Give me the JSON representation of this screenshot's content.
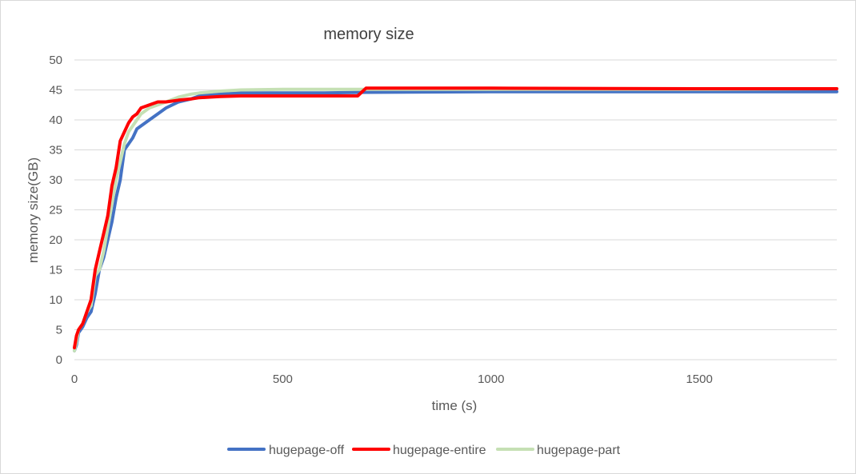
{
  "chart_data": {
    "type": "line",
    "title": "memory size",
    "xlabel": "time (s)",
    "ylabel": "memory size(GB)",
    "xlim": [
      0,
      1830
    ],
    "ylim": [
      0,
      50
    ],
    "xticks": [
      "0",
      "500",
      "1000",
      "1500"
    ],
    "xtick_values": [
      0,
      500,
      1000,
      1500
    ],
    "yticks": [
      "0",
      "5",
      "10",
      "15",
      "20",
      "25",
      "30",
      "35",
      "40",
      "45",
      "50"
    ],
    "ytick_values": [
      0,
      5,
      10,
      15,
      20,
      25,
      30,
      35,
      40,
      45,
      50
    ],
    "grid": "horizontal",
    "legend": "bottom",
    "series": [
      {
        "name": "hugepage-off",
        "color": "#4472c4",
        "x": [
          0,
          5,
          10,
          15,
          20,
          30,
          40,
          50,
          60,
          70,
          80,
          90,
          100,
          110,
          120,
          130,
          140,
          150,
          160,
          180,
          200,
          220,
          250,
          280,
          300,
          350,
          400,
          500,
          600,
          700,
          1000,
          1500,
          1830
        ],
        "y": [
          1.5,
          2.5,
          4.5,
          5,
          5.5,
          7,
          8,
          11,
          15,
          17,
          20,
          23,
          27,
          30,
          35,
          36,
          37,
          38.5,
          39,
          40,
          41,
          42,
          43,
          43.5,
          44,
          44.3,
          44.5,
          44.5,
          44.5,
          44.6,
          44.7,
          44.7,
          44.7
        ]
      },
      {
        "name": "hugepage-entire",
        "color": "#ff0000",
        "x": [
          0,
          5,
          10,
          15,
          20,
          30,
          40,
          50,
          60,
          70,
          80,
          90,
          100,
          110,
          120,
          130,
          140,
          150,
          160,
          180,
          200,
          220,
          250,
          280,
          300,
          350,
          400,
          500,
          600,
          680,
          700,
          1000,
          1500,
          1830
        ],
        "y": [
          2,
          4,
          5,
          5.5,
          6,
          8,
          10,
          15,
          18,
          21,
          24,
          29,
          32,
          36.5,
          38,
          39.5,
          40.5,
          41,
          42,
          42.5,
          43,
          43,
          43.3,
          43.5,
          43.7,
          43.9,
          44,
          44,
          44,
          44,
          45.3,
          45.3,
          45.2,
          45.2
        ]
      },
      {
        "name": "hugepage-part",
        "color": "#c5e0b4",
        "x": [
          0,
          5,
          10,
          15,
          20,
          30,
          40,
          50,
          60,
          70,
          80,
          90,
          100,
          110,
          120,
          130,
          140,
          150,
          160,
          180,
          200,
          220,
          250,
          280,
          300,
          350,
          400,
          500,
          600,
          700,
          1000,
          1500,
          1830
        ],
        "y": [
          1.5,
          3,
          5,
          5.5,
          6,
          8,
          9,
          14,
          15,
          18,
          22,
          26,
          30,
          33,
          36,
          38,
          39,
          40,
          41,
          42,
          42.5,
          43,
          43.8,
          44.3,
          44.5,
          44.8,
          45,
          45.1,
          45.1,
          45.1,
          45.1,
          45.1,
          45.2
        ]
      }
    ]
  }
}
